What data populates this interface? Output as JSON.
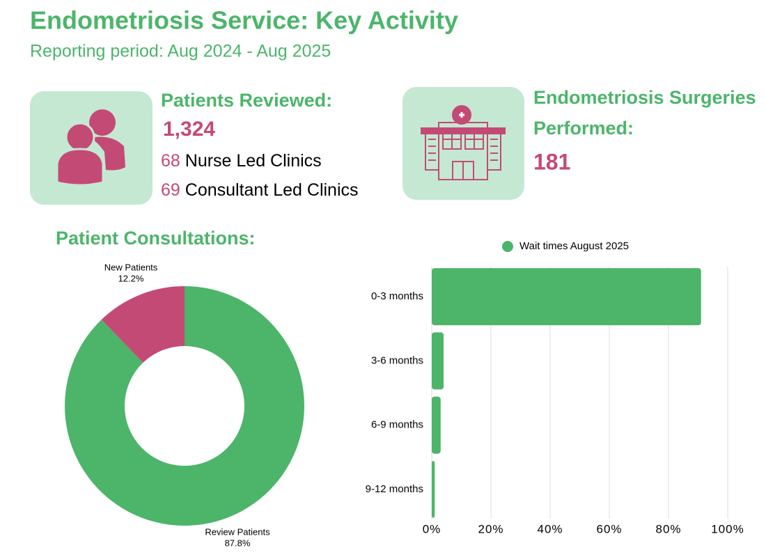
{
  "header": {
    "title": "Endometriosis Service: Key Activity",
    "subtitle": "Reporting period: Aug 2024 - Aug 2025"
  },
  "stats": {
    "patients": {
      "label": "Patients Reviewed:",
      "value": "1,324",
      "breakdown": [
        {
          "value": 68,
          "label": "Nurse Led Clinics"
        },
        {
          "value": 69,
          "label": "Consultant Led Clinics"
        }
      ]
    },
    "surgeries": {
      "label": "Endometriosis Surgeries Performed:",
      "value": 181
    }
  },
  "chart_data": [
    {
      "type": "pie",
      "title": "Patient Consultations:",
      "donut": true,
      "categories": [
        "New Patients",
        "Review Patients"
      ],
      "values": [
        12.2,
        87.8
      ],
      "value_labels": [
        "12.2%",
        "87.8%"
      ],
      "colors": [
        "#c44a76",
        "#4cb56a"
      ]
    },
    {
      "type": "bar",
      "orientation": "horizontal",
      "categories": [
        "0-3 months",
        "3-6 months",
        "6-9 months",
        "9-12 months"
      ],
      "series": [
        {
          "name": "Wait times August 2025",
          "color": "#4cb56a",
          "values": [
            91,
            4,
            3,
            1
          ]
        }
      ],
      "xlim": [
        0,
        100
      ],
      "xticks": [
        {
          "value": 0,
          "label": "0%"
        },
        {
          "value": 20,
          "label": "20%"
        },
        {
          "value": 40,
          "label": "40%"
        },
        {
          "value": 60,
          "label": "60%"
        },
        {
          "value": 80,
          "label": "80%"
        },
        {
          "value": 100,
          "label": "100%"
        }
      ],
      "grid": true,
      "legend": "top"
    }
  ]
}
